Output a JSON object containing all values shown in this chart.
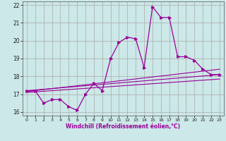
{
  "xlabel": "Windchill (Refroidissement éolien,°C)",
  "background_color": "#cce8e8",
  "grid_color": "#aaaaaa",
  "line_color": "#990099",
  "xlim": [
    -0.5,
    23.5
  ],
  "ylim": [
    15.8,
    22.2
  ],
  "xticks": [
    0,
    1,
    2,
    3,
    4,
    5,
    6,
    7,
    8,
    9,
    10,
    11,
    12,
    13,
    14,
    15,
    16,
    17,
    18,
    19,
    20,
    21,
    22,
    23
  ],
  "yticks": [
    16,
    17,
    18,
    19,
    20,
    21,
    22
  ],
  "main_x": [
    0,
    1,
    2,
    3,
    4,
    5,
    6,
    7,
    8,
    9,
    10,
    11,
    12,
    13,
    14,
    15,
    16,
    17,
    18,
    19,
    20,
    21,
    22,
    23
  ],
  "main_y": [
    17.2,
    17.2,
    16.5,
    16.7,
    16.7,
    16.3,
    16.1,
    17.0,
    17.6,
    17.2,
    19.0,
    19.9,
    20.2,
    20.1,
    18.5,
    21.9,
    21.3,
    21.3,
    19.1,
    19.1,
    18.9,
    18.4,
    18.1,
    18.1
  ],
  "trend1_x": [
    0,
    23
  ],
  "trend1_y": [
    17.2,
    18.1
  ],
  "trend2_x": [
    0,
    23
  ],
  "trend2_y": [
    17.15,
    18.4
  ],
  "trend3_x": [
    0,
    23
  ],
  "trend3_y": [
    17.1,
    17.85
  ]
}
